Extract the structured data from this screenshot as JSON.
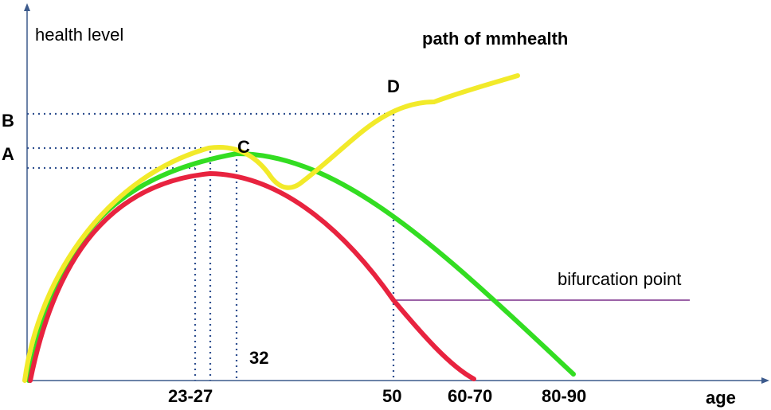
{
  "diagram": {
    "y_axis_label": "health level",
    "x_axis_label": "age",
    "title": "path of mmhealth",
    "annotation": "bifurcation point",
    "y_marks": {
      "b": "B",
      "a": "A"
    },
    "points": {
      "d": "D",
      "c": "C"
    },
    "x_ticks": {
      "age_23_27": "23-27",
      "age_32": "32",
      "age_50": "50",
      "age_60_70": "60-70",
      "age_80_90": "80-90"
    },
    "colors": {
      "axis": "#3c5a8c",
      "guide": "#2f4f8f",
      "red_curve": "#e8233f",
      "green_curve": "#33dd22",
      "yellow_curve": "#f2ea2a",
      "bifurcation_line": "#7a2f8a"
    }
  }
}
